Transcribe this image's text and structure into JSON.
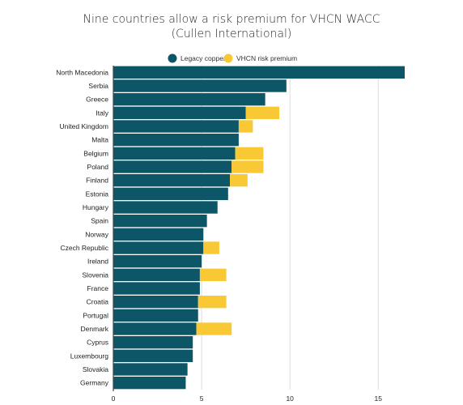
{
  "chart_data": {
    "type": "bar",
    "orientation": "horizontal",
    "stacked": true,
    "title": "Nine countries allow a risk premium for VHCN WACC",
    "subtitle": "(Cullen International)",
    "xlabel": "",
    "ylabel": "",
    "xlim": [
      0,
      16.5
    ],
    "xticks": [
      0,
      5,
      10,
      15
    ],
    "xtick_labels": [
      "0",
      "5",
      "10",
      "15"
    ],
    "grid": true,
    "legend_position": "top-center",
    "categories": [
      "North Macedonia",
      "Serbia",
      "Greece",
      "Italy",
      "United Kingdom",
      "Malta",
      "Belgium",
      "Poland",
      "Finland",
      "Estonia",
      "Hungary",
      "Spain",
      "Norway",
      "Czech Republic",
      "Ireland",
      "Slovenia",
      "France",
      "Croatia",
      "Portugal",
      "Denmark",
      "Cyprus",
      "Luxembourg",
      "Slovakia",
      "Germany"
    ],
    "series": [
      {
        "name": "Legacy copper",
        "color": "#0d5667",
        "values": [
          16.5,
          9.8,
          8.6,
          7.5,
          7.1,
          7.1,
          6.9,
          6.7,
          6.6,
          6.5,
          5.9,
          5.3,
          5.1,
          5.1,
          5.0,
          4.9,
          4.9,
          4.8,
          4.8,
          4.7,
          4.5,
          4.5,
          4.2,
          4.1
        ]
      },
      {
        "name": "VHCN risk premium",
        "color": "#f9c935",
        "values": [
          0,
          0,
          0,
          1.9,
          0.8,
          0,
          1.6,
          1.8,
          1.0,
          0,
          0,
          0,
          0,
          0.9,
          0,
          1.5,
          0,
          1.6,
          0,
          2.0,
          0,
          0,
          0,
          0
        ]
      }
    ]
  }
}
